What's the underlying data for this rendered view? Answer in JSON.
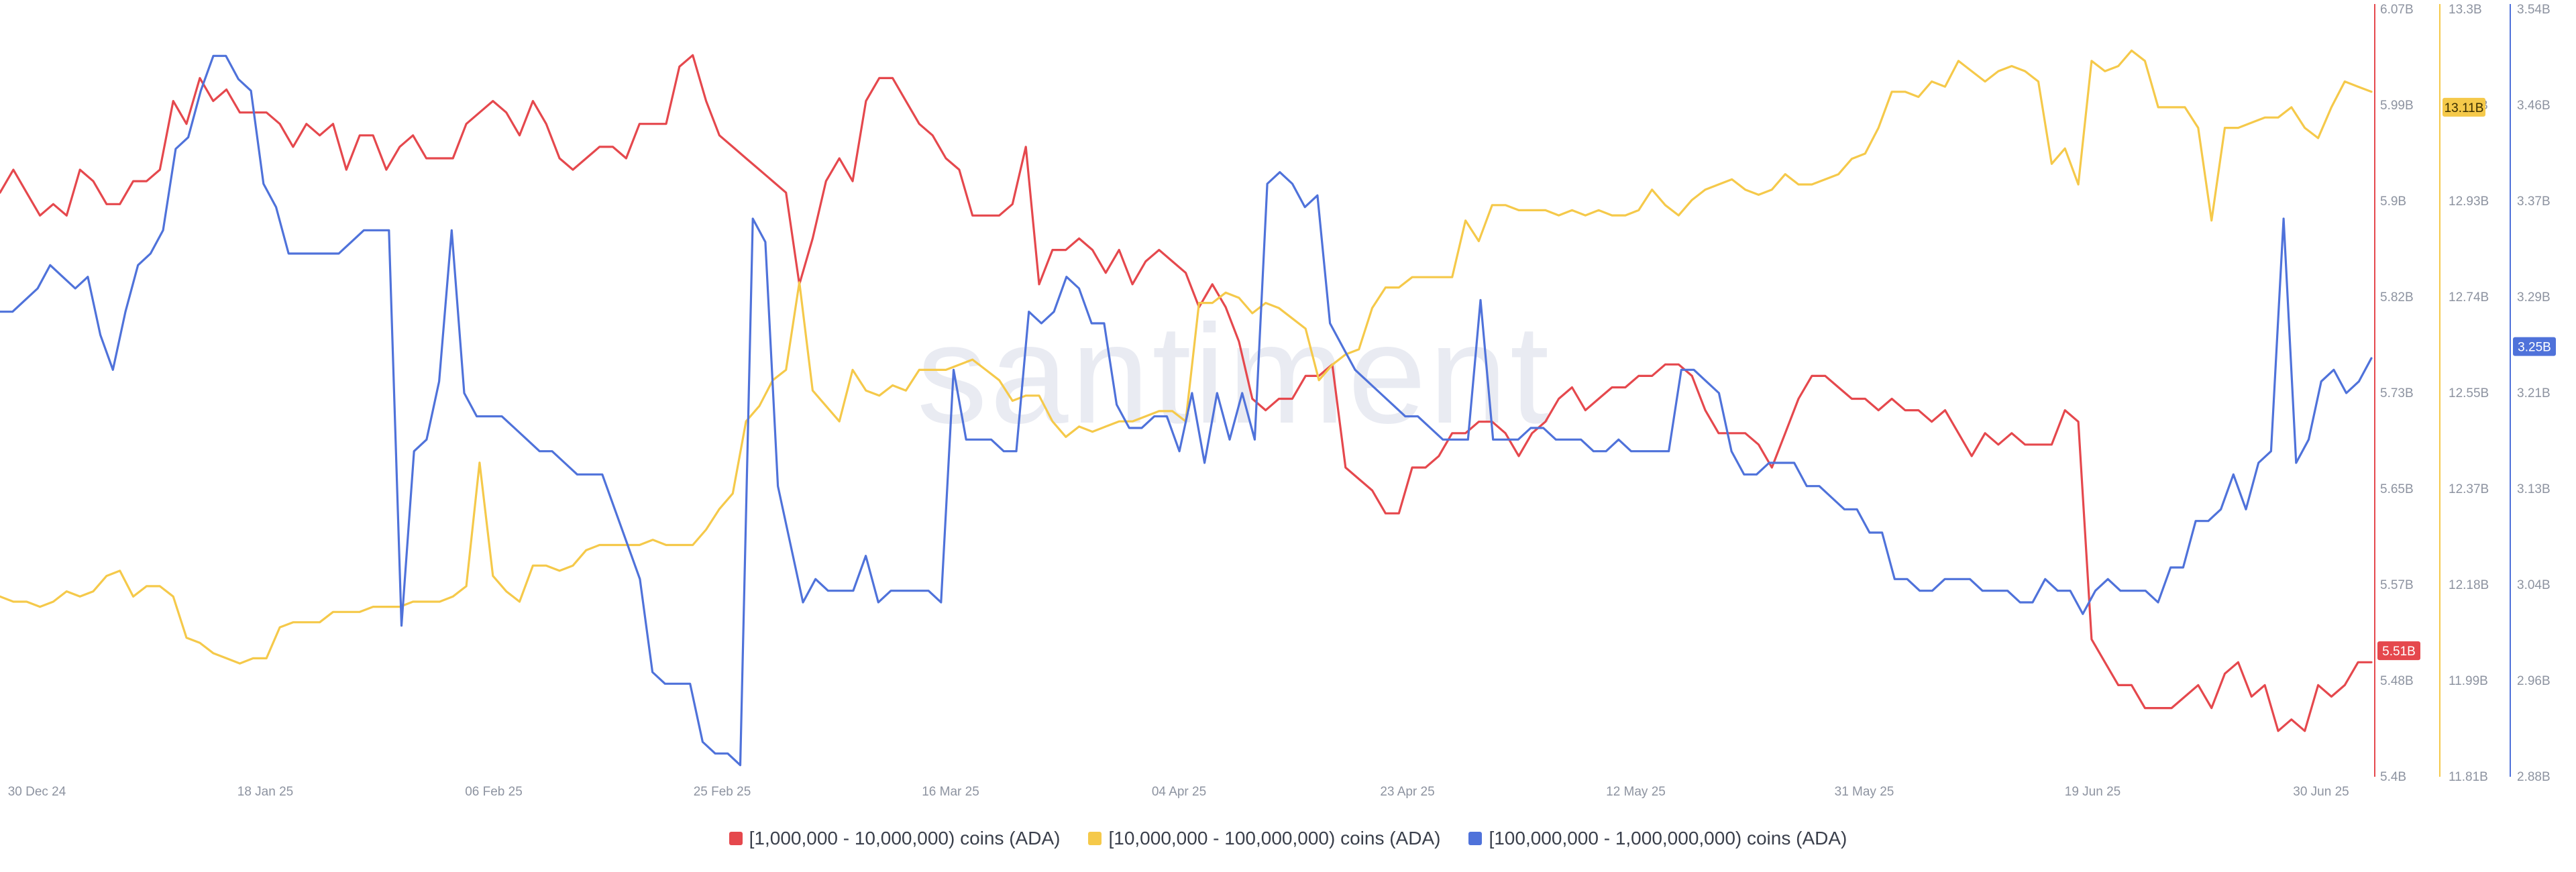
{
  "chart_data": {
    "type": "line",
    "watermark": "santiment",
    "x_ticks": [
      "30 Dec 24",
      "18 Jan 25",
      "06 Feb 25",
      "25 Feb 25",
      "16 Mar 25",
      "04 Apr 25",
      "23 Apr 25",
      "12 May 25",
      "31 May 25",
      "19 Jun 25",
      "30 Jun 25"
    ],
    "axes": [
      {
        "id": "red",
        "ticks": [
          "6.07B",
          "5.99B",
          "5.9B",
          "5.82B",
          "5.73B",
          "5.65B",
          "5.57B",
          "5.48B",
          "5.4B"
        ],
        "ylim": [
          5.4,
          6.07
        ],
        "badge": "5.51B",
        "badge_value": 5.51
      },
      {
        "id": "yellow",
        "ticks": [
          "13.3B",
          "13.11B",
          "12.93B",
          "12.74B",
          "12.55B",
          "12.37B",
          "12.18B",
          "11.99B",
          "11.81B"
        ],
        "ylim": [
          11.81,
          13.3
        ],
        "badge": "13.11B",
        "badge_value": 13.11
      },
      {
        "id": "blue",
        "ticks": [
          "3.54B",
          "3.46B",
          "3.37B",
          "3.29B",
          "3.21B",
          "3.13B",
          "3.04B",
          "2.96B",
          "2.88B"
        ],
        "ylim": [
          2.88,
          3.54
        ],
        "badge": "3.25B",
        "badge_value": 3.25
      }
    ],
    "series": [
      {
        "name": "[1,000,000 - 10,000,000) coins (ADA)",
        "axis": 0,
        "color": "#e5484d",
        "values": [
          5.91,
          5.93,
          5.91,
          5.89,
          5.9,
          5.89,
          5.93,
          5.92,
          5.9,
          5.9,
          5.92,
          5.92,
          5.93,
          5.99,
          5.97,
          6.01,
          5.99,
          6.0,
          5.98,
          5.98,
          5.98,
          5.97,
          5.95,
          5.97,
          5.96,
          5.97,
          5.93,
          5.96,
          5.96,
          5.93,
          5.95,
          5.96,
          5.94,
          5.94,
          5.94,
          5.97,
          5.98,
          5.99,
          5.98,
          5.96,
          5.99,
          5.97,
          5.94,
          5.93,
          5.94,
          5.95,
          5.95,
          5.94,
          5.97,
          5.97,
          5.97,
          6.02,
          6.03,
          5.99,
          5.96,
          5.95,
          5.94,
          5.93,
          5.92,
          5.91,
          5.83,
          5.87,
          5.92,
          5.94,
          5.92,
          5.99,
          6.01,
          6.01,
          5.99,
          5.97,
          5.96,
          5.94,
          5.93,
          5.89,
          5.89,
          5.89,
          5.9,
          5.95,
          5.83,
          5.86,
          5.86,
          5.87,
          5.86,
          5.84,
          5.86,
          5.83,
          5.85,
          5.86,
          5.85,
          5.84,
          5.81,
          5.83,
          5.81,
          5.78,
          5.73,
          5.72,
          5.73,
          5.73,
          5.75,
          5.75,
          5.76,
          5.67,
          5.66,
          5.65,
          5.63,
          5.63,
          5.67,
          5.67,
          5.68,
          5.7,
          5.7,
          5.71,
          5.71,
          5.7,
          5.68,
          5.7,
          5.71,
          5.73,
          5.74,
          5.72,
          5.73,
          5.74,
          5.74,
          5.75,
          5.75,
          5.76,
          5.76,
          5.75,
          5.72,
          5.7,
          5.7,
          5.7,
          5.69,
          5.67,
          5.7,
          5.73,
          5.75,
          5.75,
          5.74,
          5.73,
          5.73,
          5.72,
          5.73,
          5.72,
          5.72,
          5.71,
          5.72,
          5.7,
          5.68,
          5.7,
          5.69,
          5.7,
          5.69,
          5.69,
          5.69,
          5.72,
          5.71,
          5.52,
          5.5,
          5.48,
          5.48,
          5.46,
          5.46,
          5.46,
          5.47,
          5.48,
          5.46,
          5.49,
          5.5,
          5.47,
          5.48,
          5.44,
          5.45,
          5.44,
          5.48,
          5.47,
          5.48,
          5.5,
          5.5
        ]
      },
      {
        "name": "[10,000,000 - 100,000,000) coins (ADA)",
        "axis": 1,
        "color": "#f5c94a",
        "values": [
          12.16,
          12.15,
          12.15,
          12.14,
          12.15,
          12.17,
          12.16,
          12.17,
          12.2,
          12.21,
          12.16,
          12.18,
          12.18,
          12.16,
          12.08,
          12.07,
          12.05,
          12.04,
          12.03,
          12.04,
          12.04,
          12.1,
          12.11,
          12.11,
          12.11,
          12.13,
          12.13,
          12.13,
          12.14,
          12.14,
          12.14,
          12.15,
          12.15,
          12.15,
          12.16,
          12.18,
          12.42,
          12.2,
          12.17,
          12.15,
          12.22,
          12.22,
          12.21,
          12.22,
          12.25,
          12.26,
          12.26,
          12.26,
          12.26,
          12.27,
          12.26,
          12.26,
          12.26,
          12.29,
          12.33,
          12.36,
          12.5,
          12.53,
          12.58,
          12.6,
          12.77,
          12.56,
          12.53,
          12.5,
          12.6,
          12.56,
          12.55,
          12.57,
          12.56,
          12.6,
          12.6,
          12.6,
          12.61,
          12.62,
          12.6,
          12.58,
          12.54,
          12.55,
          12.55,
          12.5,
          12.47,
          12.49,
          12.48,
          12.49,
          12.5,
          12.5,
          12.51,
          12.52,
          12.52,
          12.5,
          12.73,
          12.73,
          12.75,
          12.74,
          12.71,
          12.73,
          12.72,
          12.7,
          12.68,
          12.58,
          12.61,
          12.63,
          12.64,
          12.72,
          12.76,
          12.76,
          12.78,
          12.78,
          12.78,
          12.78,
          12.89,
          12.85,
          12.92,
          12.92,
          12.91,
          12.91,
          12.91,
          12.9,
          12.91,
          12.9,
          12.91,
          12.9,
          12.9,
          12.91,
          12.95,
          12.92,
          12.9,
          12.93,
          12.95,
          12.96,
          12.97,
          12.95,
          12.94,
          12.95,
          12.98,
          12.96,
          12.96,
          12.97,
          12.98,
          13.01,
          13.02,
          13.07,
          13.14,
          13.14,
          13.13,
          13.16,
          13.15,
          13.2,
          13.18,
          13.16,
          13.18,
          13.19,
          13.18,
          13.16,
          13.0,
          13.03,
          12.96,
          13.2,
          13.18,
          13.19,
          13.22,
          13.2,
          13.11,
          13.11,
          13.11,
          13.07,
          12.89,
          13.07,
          13.07,
          13.08,
          13.09,
          13.09,
          13.11,
          13.07,
          13.05,
          13.11,
          13.16,
          13.15,
          13.14
        ]
      },
      {
        "name": "[100,000,000 - 1,000,000,000) coins (ADA)",
        "axis": 2,
        "color": "#4f72da",
        "values": [
          3.28,
          3.28,
          3.29,
          3.3,
          3.32,
          3.31,
          3.3,
          3.31,
          3.26,
          3.23,
          3.28,
          3.32,
          3.33,
          3.35,
          3.42,
          3.43,
          3.47,
          3.5,
          3.5,
          3.48,
          3.47,
          3.39,
          3.37,
          3.33,
          3.33,
          3.33,
          3.33,
          3.33,
          3.34,
          3.35,
          3.35,
          3.35,
          3.01,
          3.16,
          3.17,
          3.22,
          3.35,
          3.21,
          3.19,
          3.19,
          3.19,
          3.18,
          3.17,
          3.16,
          3.16,
          3.15,
          3.14,
          3.14,
          3.14,
          3.11,
          3.08,
          3.05,
          2.97,
          2.96,
          2.96,
          2.96,
          2.91,
          2.9,
          2.9,
          2.89,
          3.36,
          3.34,
          3.13,
          3.08,
          3.03,
          3.05,
          3.04,
          3.04,
          3.04,
          3.07,
          3.03,
          3.04,
          3.04,
          3.04,
          3.04,
          3.03,
          3.23,
          3.17,
          3.17,
          3.17,
          3.16,
          3.16,
          3.28,
          3.27,
          3.28,
          3.31,
          3.3,
          3.27,
          3.27,
          3.2,
          3.18,
          3.18,
          3.19,
          3.19,
          3.16,
          3.21,
          3.15,
          3.21,
          3.17,
          3.21,
          3.17,
          3.39,
          3.4,
          3.39,
          3.37,
          3.38,
          3.27,
          3.25,
          3.23,
          3.22,
          3.21,
          3.2,
          3.19,
          3.19,
          3.18,
          3.17,
          3.17,
          3.17,
          3.29,
          3.17,
          3.17,
          3.17,
          3.18,
          3.18,
          3.17,
          3.17,
          3.17,
          3.16,
          3.16,
          3.17,
          3.16,
          3.16,
          3.16,
          3.16,
          3.23,
          3.23,
          3.22,
          3.21,
          3.16,
          3.14,
          3.14,
          3.15,
          3.15,
          3.15,
          3.13,
          3.13,
          3.12,
          3.11,
          3.11,
          3.09,
          3.09,
          3.05,
          3.05,
          3.04,
          3.04,
          3.05,
          3.05,
          3.05,
          3.04,
          3.04,
          3.04,
          3.03,
          3.03,
          3.05,
          3.04,
          3.04,
          3.02,
          3.04,
          3.05,
          3.04,
          3.04,
          3.04,
          3.03,
          3.06,
          3.06,
          3.1,
          3.1,
          3.11,
          3.14,
          3.11,
          3.15,
          3.16,
          3.36,
          3.15,
          3.17,
          3.22,
          3.23,
          3.21,
          3.22,
          3.24
        ]
      }
    ]
  }
}
